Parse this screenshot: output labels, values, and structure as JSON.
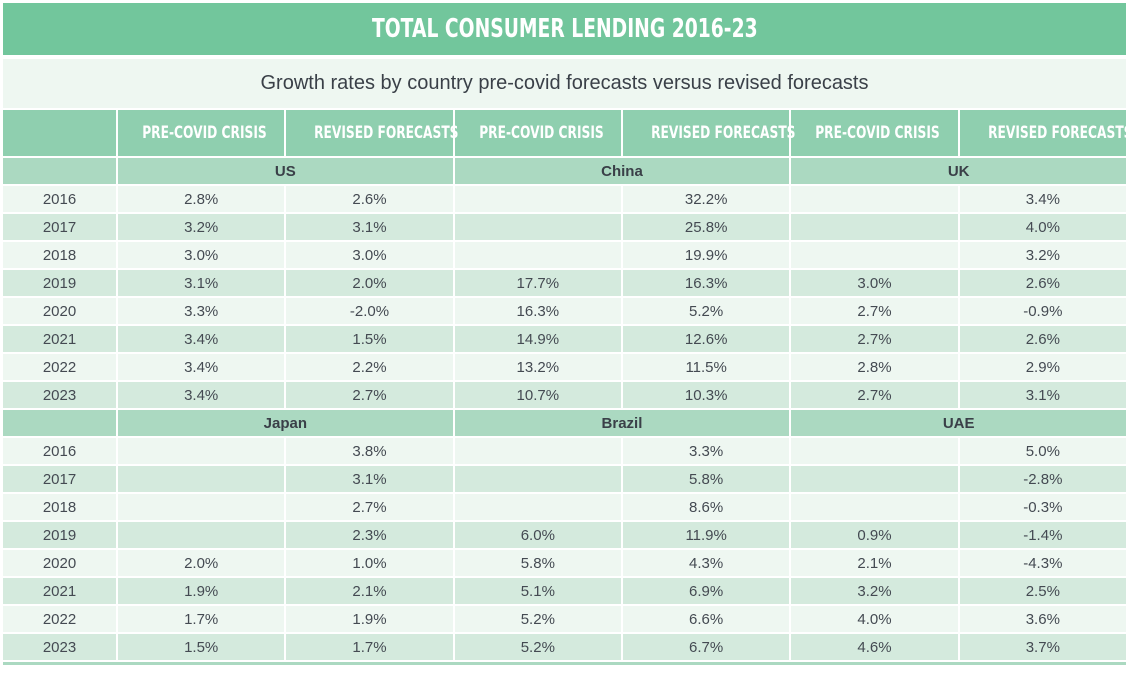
{
  "title": "TOTAL CONSUMER LENDING 2016-23",
  "subtitle": "Growth rates by country pre-covid forecasts versus revised forecasts",
  "column_headers": [
    "PRE-COVID CRISIS",
    "REVISED FORECASTS",
    "PRE-COVID CRISIS",
    "REVISED FORECASTS",
    "PRE-COVID CRISIS",
    "REVISED FORECASTS"
  ],
  "sections": [
    {
      "countries": [
        "US",
        "China",
        "UK"
      ],
      "rows": [
        {
          "year": "2016",
          "values": [
            "2.8%",
            "2.6%",
            "",
            "32.2%",
            "",
            "3.4%"
          ]
        },
        {
          "year": "2017",
          "values": [
            "3.2%",
            "3.1%",
            "",
            "25.8%",
            "",
            "4.0%"
          ]
        },
        {
          "year": "2018",
          "values": [
            "3.0%",
            "3.0%",
            "",
            "19.9%",
            "",
            "3.2%"
          ]
        },
        {
          "year": "2019",
          "values": [
            "3.1%",
            "2.0%",
            "17.7%",
            "16.3%",
            "3.0%",
            "2.6%"
          ]
        },
        {
          "year": "2020",
          "values": [
            "3.3%",
            "-2.0%",
            "16.3%",
            "5.2%",
            "2.7%",
            "-0.9%"
          ]
        },
        {
          "year": "2021",
          "values": [
            "3.4%",
            "1.5%",
            "14.9%",
            "12.6%",
            "2.7%",
            "2.6%"
          ]
        },
        {
          "year": "2022",
          "values": [
            "3.4%",
            "2.2%",
            "13.2%",
            "11.5%",
            "2.8%",
            "2.9%"
          ]
        },
        {
          "year": "2023",
          "values": [
            "3.4%",
            "2.7%",
            "10.7%",
            "10.3%",
            "2.7%",
            "3.1%"
          ]
        }
      ]
    },
    {
      "countries": [
        "Japan",
        "Brazil",
        "UAE"
      ],
      "rows": [
        {
          "year": "2016",
          "values": [
            "",
            "3.8%",
            "",
            "3.3%",
            "",
            "5.0%"
          ]
        },
        {
          "year": "2017",
          "values": [
            "",
            "3.1%",
            "",
            "5.8%",
            "",
            "-2.8%"
          ]
        },
        {
          "year": "2018",
          "values": [
            "",
            "2.7%",
            "",
            "8.6%",
            "",
            "-0.3%"
          ]
        },
        {
          "year": "2019",
          "values": [
            "",
            "2.3%",
            "6.0%",
            "11.9%",
            "0.9%",
            "-1.4%"
          ]
        },
        {
          "year": "2020",
          "values": [
            "2.0%",
            "1.0%",
            "5.8%",
            "4.3%",
            "2.1%",
            "-4.3%"
          ]
        },
        {
          "year": "2021",
          "values": [
            "1.9%",
            "2.1%",
            "5.1%",
            "6.9%",
            "3.2%",
            "2.5%"
          ]
        },
        {
          "year": "2022",
          "values": [
            "1.7%",
            "1.9%",
            "5.2%",
            "6.6%",
            "4.0%",
            "3.6%"
          ]
        },
        {
          "year": "2023",
          "values": [
            "1.5%",
            "1.7%",
            "5.2%",
            "6.7%",
            "4.6%",
            "3.7%"
          ]
        }
      ]
    }
  ],
  "colors": {
    "title_bg": "#72c69c",
    "header_bg": "#8fcfaf",
    "country_bg": "#abd9c1",
    "row_light": "#eef7f1",
    "row_dark": "#d4eadd",
    "text": "#444a52"
  }
}
